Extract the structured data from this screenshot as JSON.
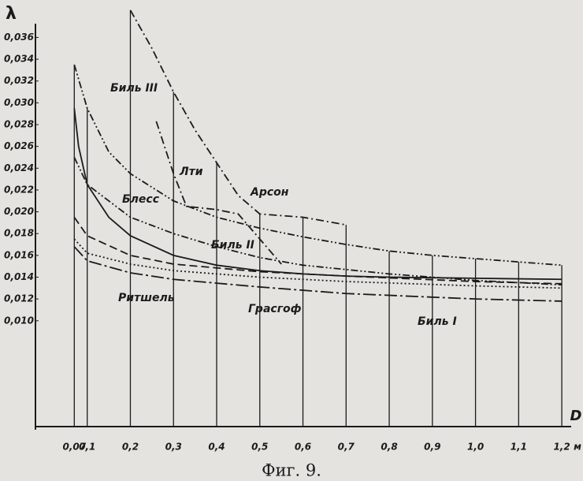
{
  "chart_data": {
    "type": "line",
    "y_label": "λ",
    "x_label": "D",
    "x_unit": "м",
    "caption": "Фиг. 9.",
    "xlim": [
      -0.02,
      1.24
    ],
    "ylim": [
      0,
      0.039
    ],
    "xticks": [
      {
        "value": 0.07,
        "label": "0,07"
      },
      {
        "value": 0.1,
        "label": "0,1"
      },
      {
        "value": 0.2,
        "label": "0,2"
      },
      {
        "value": 0.3,
        "label": "0,3"
      },
      {
        "value": 0.4,
        "label": "0,4"
      },
      {
        "value": 0.5,
        "label": "0,5"
      },
      {
        "value": 0.6,
        "label": "0,6"
      },
      {
        "value": 0.7,
        "label": "0,7"
      },
      {
        "value": 0.8,
        "label": "0,8"
      },
      {
        "value": 0.9,
        "label": "0,9"
      },
      {
        "value": 1.0,
        "label": "1,0"
      },
      {
        "value": 1.1,
        "label": "1,1"
      },
      {
        "value": 1.2,
        "label": "1,2"
      }
    ],
    "yticks": [
      {
        "value": 0.01,
        "label": "0,010"
      },
      {
        "value": 0.012,
        "label": "0,012"
      },
      {
        "value": 0.014,
        "label": "0,014"
      },
      {
        "value": 0.016,
        "label": "0,016"
      },
      {
        "value": 0.018,
        "label": "0,018"
      },
      {
        "value": 0.02,
        "label": "0,020"
      },
      {
        "value": 0.022,
        "label": "0,022"
      },
      {
        "value": 0.024,
        "label": "0,024"
      },
      {
        "value": 0.026,
        "label": "0,026"
      },
      {
        "value": 0.028,
        "label": "0,028"
      },
      {
        "value": 0.03,
        "label": "0,030"
      },
      {
        "value": 0.032,
        "label": "0,032"
      },
      {
        "value": 0.034,
        "label": "0,034"
      },
      {
        "value": 0.036,
        "label": "0,036"
      }
    ],
    "vertical_grid": true,
    "series": [
      {
        "name": "Биль III",
        "color": "#1b1b1b",
        "linestyle": "dash-dot-dot",
        "x": [
          0.07,
          0.1,
          0.15,
          0.2,
          0.3,
          0.4,
          0.5,
          0.6,
          0.7,
          0.8,
          0.9,
          1.0,
          1.1,
          1.2
        ],
        "values": [
          0.0335,
          0.0295,
          0.0255,
          0.0235,
          0.021,
          0.0195,
          0.0185,
          0.0177,
          0.017,
          0.0164,
          0.016,
          0.0157,
          0.0154,
          0.0151
        ]
      },
      {
        "name": "Арсон",
        "color": "#1b1b1b",
        "linestyle": "dash-dot",
        "x": [
          0.2,
          0.25,
          0.3,
          0.35,
          0.4,
          0.45,
          0.5,
          0.6,
          0.7
        ],
        "values": [
          0.0385,
          0.035,
          0.031,
          0.0275,
          0.0245,
          0.0215,
          0.0198,
          0.0195,
          0.0188
        ]
      },
      {
        "name": "Лти",
        "color": "#1b1b1b",
        "linestyle": "dash-dot",
        "x": [
          0.26,
          0.3,
          0.33,
          0.4,
          0.45,
          0.5,
          0.55
        ],
        "values": [
          0.0283,
          0.0235,
          0.0205,
          0.0202,
          0.0198,
          0.0175,
          0.0152
        ]
      },
      {
        "name": "Блесс",
        "color": "#1b1b1b",
        "linestyle": "solid",
        "x": [
          0.07,
          0.08,
          0.1,
          0.15,
          0.2,
          0.3,
          0.4,
          0.5,
          0.6,
          0.7,
          0.8,
          1.0,
          1.2
        ],
        "values": [
          0.0295,
          0.026,
          0.0225,
          0.0195,
          0.0178,
          0.016,
          0.0151,
          0.0146,
          0.0143,
          0.0141,
          0.014,
          0.0139,
          0.0138
        ]
      },
      {
        "name": "Биль II",
        "color": "#1b1b1b",
        "linestyle": "dash-dot-dot",
        "x": [
          0.07,
          0.1,
          0.2,
          0.3,
          0.4,
          0.5,
          0.6,
          0.8,
          1.0,
          1.2
        ],
        "values": [
          0.025,
          0.0225,
          0.0195,
          0.018,
          0.0168,
          0.0158,
          0.0151,
          0.0143,
          0.0137,
          0.0133
        ]
      },
      {
        "name": "Ритшель",
        "color": "#1b1b1b",
        "linestyle": "dash",
        "x": [
          0.07,
          0.1,
          0.2,
          0.3,
          0.5,
          0.7,
          1.0,
          1.2
        ],
        "values": [
          0.0195,
          0.0178,
          0.016,
          0.0152,
          0.0145,
          0.0141,
          0.0136,
          0.0134
        ]
      },
      {
        "name": "Грасгоф",
        "color": "#1b1b1b",
        "linestyle": "dot",
        "x": [
          0.07,
          0.1,
          0.2,
          0.3,
          0.5,
          0.7,
          1.0,
          1.2
        ],
        "values": [
          0.0175,
          0.0162,
          0.0152,
          0.0146,
          0.014,
          0.0136,
          0.0132,
          0.013
        ]
      },
      {
        "name": "Биль I",
        "color": "#1b1b1b",
        "linestyle": "long-dash-dot",
        "x": [
          0.07,
          0.1,
          0.2,
          0.3,
          0.5,
          0.7,
          1.0,
          1.2
        ],
        "values": [
          0.0168,
          0.0155,
          0.0144,
          0.0138,
          0.0131,
          0.0125,
          0.012,
          0.0118
        ]
      }
    ]
  }
}
